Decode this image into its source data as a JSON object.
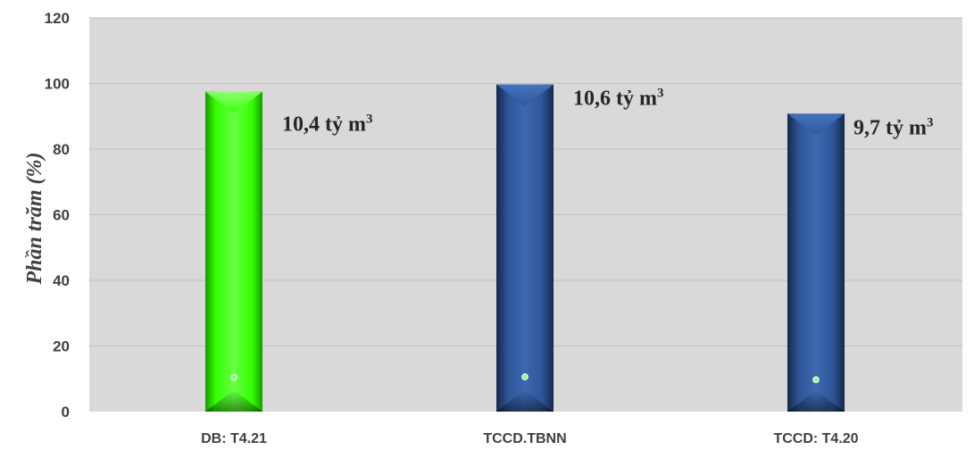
{
  "chart_data": {
    "type": "bar",
    "categories": [
      "DB: T4.21",
      "TCCD.TBNN",
      "TCCD: T4.20"
    ],
    "values": [
      97.5,
      99.7,
      90.8
    ],
    "secondary_values": [
      10.4,
      10.6,
      9.7
    ],
    "data_labels": [
      {
        "main": "10,4 tỷ m",
        "sup": "3"
      },
      {
        "main": "10,6 tỷ m",
        "sup": "3"
      },
      {
        "main": "9,7 tỷ m",
        "sup": "3"
      }
    ],
    "ylabel": "Phần trăm (%)",
    "ylim": [
      0,
      120
    ],
    "yticks": [
      0,
      20,
      40,
      60,
      80,
      100,
      120
    ],
    "grid": true,
    "colors": {
      "plot_background": "#d9d9d9",
      "gridline": "#bfbfbf",
      "highlight_bar": "#33ff00",
      "standard_bar": "#2f5597",
      "marker": "#7fff7f"
    }
  }
}
